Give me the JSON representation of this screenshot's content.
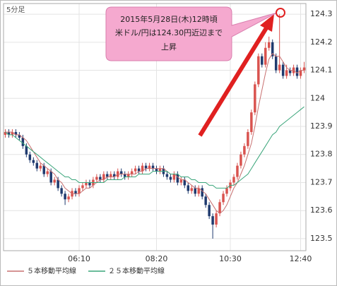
{
  "chart_data": {
    "type": "candlestick",
    "timeframe_label": "5分足",
    "categories": [
      null,
      null,
      null,
      null,
      null,
      null,
      null,
      null,
      null,
      null,
      null,
      null,
      null,
      null,
      null,
      null,
      null,
      null,
      null,
      null,
      null,
      "06:10",
      null,
      null,
      null,
      null,
      null,
      null,
      null,
      null,
      null,
      null,
      null,
      null,
      null,
      null,
      null,
      null,
      null,
      null,
      null,
      null,
      null,
      "08:20",
      null,
      null,
      null,
      null,
      null,
      null,
      null,
      null,
      null,
      null,
      null,
      null,
      null,
      null,
      null,
      null,
      null,
      null,
      null,
      null,
      "10:30",
      null,
      null,
      null,
      null,
      null,
      null,
      null,
      null,
      null,
      null,
      null,
      null,
      null,
      null,
      null,
      null,
      null,
      null,
      null,
      "12:40",
      null
    ],
    "open": [
      123.87,
      123.88,
      123.87,
      123.88,
      123.87,
      123.86,
      123.83,
      123.8,
      123.78,
      123.77,
      123.75,
      123.76,
      123.73,
      123.74,
      123.7,
      123.71,
      123.68,
      123.66,
      123.64,
      123.65,
      123.67,
      123.66,
      123.68,
      123.69,
      123.7,
      123.69,
      123.71,
      123.72,
      123.71,
      123.73,
      123.72,
      123.73,
      123.72,
      123.74,
      123.73,
      123.72,
      123.73,
      123.74,
      123.75,
      123.74,
      123.76,
      123.75,
      123.76,
      123.75,
      123.74,
      123.75,
      123.73,
      123.72,
      123.71,
      123.73,
      123.7,
      123.71,
      123.69,
      123.67,
      123.68,
      123.66,
      123.68,
      123.65,
      123.62,
      123.58,
      123.55,
      123.59,
      123.63,
      123.66,
      123.68,
      123.7,
      123.72,
      123.76,
      123.8,
      123.83,
      123.88,
      123.95,
      124.05,
      124.15,
      124.12,
      124.18,
      124.2,
      124.15,
      124.1,
      124.12,
      124.08,
      124.1,
      124.09,
      124.11,
      124.08,
      124.1
    ],
    "high": [
      123.89,
      123.89,
      123.89,
      123.89,
      123.88,
      123.87,
      123.84,
      123.81,
      123.79,
      123.78,
      123.77,
      123.77,
      123.75,
      123.75,
      123.72,
      123.72,
      123.69,
      123.67,
      123.66,
      123.68,
      123.68,
      123.69,
      123.7,
      123.71,
      123.71,
      123.72,
      123.73,
      123.73,
      123.74,
      123.74,
      123.74,
      123.74,
      123.75,
      123.75,
      123.74,
      123.74,
      123.75,
      123.76,
      123.76,
      123.77,
      123.77,
      123.77,
      123.77,
      123.76,
      123.76,
      123.76,
      123.74,
      123.73,
      123.74,
      123.74,
      123.72,
      123.72,
      123.7,
      123.69,
      123.69,
      123.69,
      123.69,
      123.66,
      123.63,
      123.59,
      123.6,
      123.64,
      123.67,
      123.69,
      123.71,
      123.73,
      123.77,
      123.81,
      123.84,
      123.89,
      123.96,
      124.06,
      124.16,
      124.16,
      124.2,
      124.22,
      124.21,
      124.16,
      124.3,
      124.13,
      124.12,
      124.11,
      124.12,
      124.12,
      124.11,
      124.13
    ],
    "low": [
      123.86,
      123.86,
      123.86,
      123.86,
      123.85,
      123.82,
      123.79,
      123.77,
      123.76,
      123.74,
      123.74,
      123.72,
      123.72,
      123.69,
      123.69,
      123.67,
      123.65,
      123.62,
      123.63,
      123.64,
      123.65,
      123.65,
      123.67,
      123.68,
      123.68,
      123.68,
      123.7,
      123.7,
      123.7,
      123.71,
      123.71,
      123.71,
      123.71,
      123.72,
      123.71,
      123.71,
      123.72,
      123.73,
      123.73,
      123.73,
      123.74,
      123.74,
      123.74,
      123.73,
      123.73,
      123.72,
      123.71,
      123.7,
      123.7,
      123.69,
      123.69,
      123.68,
      123.66,
      123.66,
      123.65,
      123.65,
      123.64,
      123.61,
      123.57,
      123.5,
      123.54,
      123.58,
      123.62,
      123.65,
      123.67,
      123.69,
      123.71,
      123.75,
      123.79,
      123.82,
      123.87,
      123.94,
      124.04,
      124.11,
      124.11,
      124.17,
      124.14,
      124.09,
      124.09,
      124.07,
      124.07,
      124.08,
      124.08,
      124.07,
      124.07,
      124.09
    ],
    "close": [
      123.88,
      123.87,
      123.88,
      123.87,
      123.86,
      123.83,
      123.8,
      123.78,
      123.77,
      123.75,
      123.76,
      123.73,
      123.74,
      123.7,
      123.71,
      123.68,
      123.66,
      123.64,
      123.65,
      123.67,
      123.66,
      123.68,
      123.69,
      123.7,
      123.69,
      123.71,
      123.72,
      123.71,
      123.73,
      123.72,
      123.73,
      123.72,
      123.74,
      123.73,
      123.72,
      123.73,
      123.74,
      123.75,
      123.74,
      123.76,
      123.75,
      123.76,
      123.75,
      123.74,
      123.75,
      123.73,
      123.72,
      123.71,
      123.73,
      123.7,
      123.71,
      123.69,
      123.67,
      123.68,
      123.66,
      123.68,
      123.65,
      123.62,
      123.58,
      123.55,
      123.59,
      123.63,
      123.66,
      123.68,
      123.7,
      123.72,
      123.76,
      123.8,
      123.83,
      123.88,
      123.95,
      124.05,
      124.15,
      124.12,
      124.18,
      124.2,
      124.15,
      124.1,
      124.12,
      124.08,
      124.1,
      124.09,
      124.11,
      124.08,
      124.1,
      124.11
    ],
    "up_color": "#d9534f",
    "down_color": "#1f3a6e",
    "series": [
      {
        "name": "５本移動平均線",
        "color": "#c87070",
        "values": [
          123.88,
          123.88,
          123.88,
          123.87,
          123.87,
          123.86,
          123.85,
          123.83,
          123.81,
          123.79,
          123.77,
          123.76,
          123.75,
          123.74,
          123.73,
          123.71,
          123.7,
          123.68,
          123.67,
          123.66,
          123.66,
          123.66,
          123.67,
          123.68,
          123.68,
          123.69,
          123.7,
          123.71,
          123.71,
          123.72,
          123.72,
          123.72,
          123.73,
          123.73,
          123.73,
          123.73,
          123.73,
          123.73,
          123.74,
          123.74,
          123.75,
          123.75,
          123.75,
          123.75,
          123.75,
          123.75,
          123.74,
          123.73,
          123.73,
          123.72,
          123.71,
          123.71,
          123.7,
          123.69,
          123.68,
          123.68,
          123.67,
          123.66,
          123.64,
          123.62,
          123.6,
          123.59,
          123.6,
          123.62,
          123.65,
          123.68,
          123.7,
          123.73,
          123.76,
          123.8,
          123.84,
          123.9,
          123.97,
          124.03,
          124.09,
          124.14,
          124.16,
          124.15,
          124.15,
          124.13,
          124.11,
          124.1,
          124.1,
          124.09,
          124.1,
          124.1
        ]
      },
      {
        "name": "２５本移動平均線",
        "color": "#3aa57a",
        "values": [
          123.88,
          123.87,
          123.87,
          123.86,
          123.85,
          123.84,
          123.83,
          123.82,
          123.81,
          123.8,
          123.79,
          123.78,
          123.77,
          123.76,
          123.75,
          123.74,
          123.73,
          123.72,
          123.72,
          123.71,
          123.71,
          123.7,
          123.7,
          123.7,
          123.7,
          123.7,
          123.7,
          123.7,
          123.7,
          123.71,
          123.71,
          123.71,
          123.71,
          123.71,
          123.72,
          123.72,
          123.72,
          123.72,
          123.73,
          123.73,
          123.73,
          123.73,
          123.74,
          123.74,
          123.74,
          123.74,
          123.74,
          123.73,
          123.73,
          123.73,
          123.72,
          123.72,
          123.72,
          123.71,
          123.71,
          123.7,
          123.7,
          123.7,
          123.69,
          123.69,
          123.68,
          123.68,
          123.68,
          123.68,
          123.69,
          123.69,
          123.7,
          123.71,
          123.72,
          123.73,
          123.75,
          123.77,
          123.79,
          123.81,
          123.83,
          123.85,
          123.87,
          123.88,
          123.9,
          123.91,
          123.92,
          123.93,
          123.94,
          123.95,
          123.96,
          123.97
        ]
      }
    ],
    "ylim": [
      123.457,
      124.338
    ],
    "yticks": [
      123.5,
      123.6,
      123.7,
      123.8,
      123.9,
      124,
      124.1,
      124.2,
      124.3
    ],
    "grid": true,
    "annotation": [
      "2015年5月28日(木)12時頃",
      "米ドル/円は124.30円近辺まで",
      "上昇"
    ]
  }
}
